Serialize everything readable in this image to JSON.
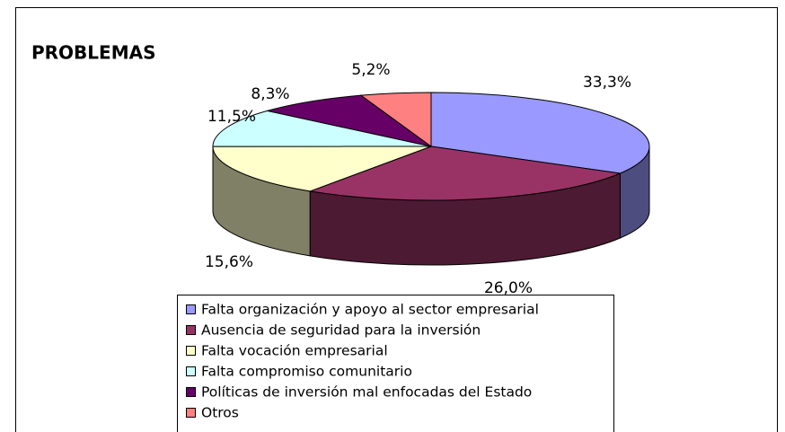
{
  "chart_data": {
    "type": "pie",
    "title": "PROBLEMAS",
    "categories": [
      "Falta organización y apoyo al sector empresarial",
      "Ausencia de seguridad para la inversión",
      "Falta vocación empresarial",
      "Falta compromiso comunitario",
      "Políticas de inversión mal enfocadas del Estado",
      "Otros"
    ],
    "values": [
      33.3,
      26.0,
      15.6,
      11.5,
      8.3,
      5.2
    ],
    "value_labels": [
      "33,3%",
      "26,0%",
      "15,6%",
      "11,5%",
      "8,3%",
      "5,2%"
    ],
    "colors": [
      "#9999ff",
      "#993366",
      "#ffffcc",
      "#ccffff",
      "#660066",
      "#ff8080"
    ],
    "legend": "bottom"
  }
}
